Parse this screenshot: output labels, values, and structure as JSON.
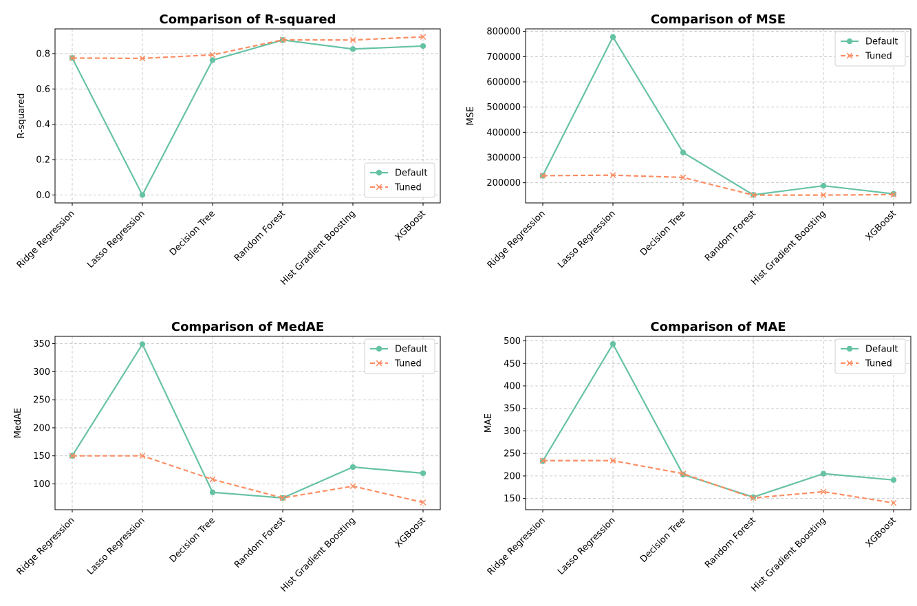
{
  "colors": {
    "default": "#66c2a5",
    "tuned": "#fc8d62",
    "grid": "#b0b0b0",
    "axis": "#000000"
  },
  "legend_labels": {
    "default": "Default",
    "tuned": "Tuned"
  },
  "chart_data": [
    {
      "type": "line",
      "title": "Comparison of R-squared",
      "xlabel": "",
      "ylabel": "R-squared",
      "categories": [
        "Ridge Regression",
        "Lasso Regression",
        "Decision Tree",
        "Random Forest",
        "Hist Gradient Boosting",
        "XGBoost"
      ],
      "series": [
        {
          "name": "Default",
          "values": [
            0.775,
            0.0,
            0.763,
            0.877,
            0.826,
            0.843
          ]
        },
        {
          "name": "Tuned",
          "values": [
            0.775,
            0.773,
            0.793,
            0.878,
            0.877,
            0.895
          ]
        }
      ],
      "ylim": [
        -0.045,
        0.94
      ],
      "yticks": [
        0.0,
        0.2,
        0.4,
        0.6,
        0.8
      ],
      "ytick_labels": [
        "0.0",
        "0.2",
        "0.4",
        "0.6",
        "0.8"
      ],
      "legend_position": "lower-right",
      "grid": true
    },
    {
      "type": "line",
      "title": "Comparison of MSE",
      "xlabel": "",
      "ylabel": "MSE",
      "categories": [
        "Ridge Regression",
        "Lasso Regression",
        "Decision Tree",
        "Random Forest",
        "Hist Gradient Boosting",
        "XGBoost"
      ],
      "series": [
        {
          "name": "Default",
          "values": [
            228000,
            778000,
            320000,
            152000,
            188000,
            156000
          ]
        },
        {
          "name": "Tuned",
          "values": [
            228000,
            230000,
            221000,
            151000,
            151000,
            153000
          ]
        }
      ],
      "ylim": [
        120000,
        810000
      ],
      "yticks": [
        200000,
        300000,
        400000,
        500000,
        600000,
        700000,
        800000
      ],
      "ytick_labels": [
        "200000",
        "300000",
        "400000",
        "500000",
        "600000",
        "700000",
        "800000"
      ],
      "legend_position": "upper-right",
      "grid": true
    },
    {
      "type": "line",
      "title": "Comparison of MedAE",
      "xlabel": "",
      "ylabel": "MedAE",
      "categories": [
        "Ridge Regression",
        "Lasso Regression",
        "Decision Tree",
        "Random Forest",
        "Hist Gradient Boosting",
        "XGBoost"
      ],
      "series": [
        {
          "name": "Default",
          "values": [
            150,
            349,
            85,
            75,
            130,
            119
          ]
        },
        {
          "name": "Tuned",
          "values": [
            150,
            150,
            108,
            75,
            96,
            67
          ]
        }
      ],
      "ylim": [
        54,
        363
      ],
      "yticks": [
        100,
        150,
        200,
        250,
        300,
        350
      ],
      "ytick_labels": [
        "100",
        "150",
        "200",
        "250",
        "300",
        "350"
      ],
      "legend_position": "upper-right",
      "grid": true
    },
    {
      "type": "line",
      "title": "Comparison of MAE",
      "xlabel": "",
      "ylabel": "MAE",
      "categories": [
        "Ridge Regression",
        "Lasso Regression",
        "Decision Tree",
        "Random Forest",
        "Hist Gradient Boosting",
        "XGBoost"
      ],
      "series": [
        {
          "name": "Default",
          "values": [
            233,
            493,
            203,
            153,
            205,
            191
          ]
        },
        {
          "name": "Tuned",
          "values": [
            234,
            234,
            205,
            151,
            165,
            140
          ]
        }
      ],
      "ylim": [
        125,
        510
      ],
      "yticks": [
        150,
        200,
        250,
        300,
        350,
        400,
        450,
        500
      ],
      "ytick_labels": [
        "150",
        "200",
        "250",
        "300",
        "350",
        "400",
        "450",
        "500"
      ],
      "legend_position": "upper-right",
      "grid": true
    }
  ]
}
